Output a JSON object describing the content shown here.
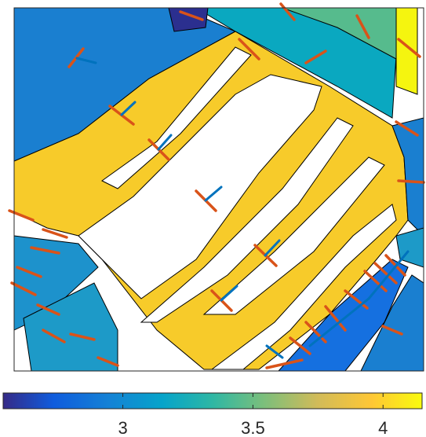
{
  "colorbar": {
    "lim": [
      2.54,
      4.15
    ],
    "ticks": [
      3,
      3.5,
      4
    ]
  }
}
